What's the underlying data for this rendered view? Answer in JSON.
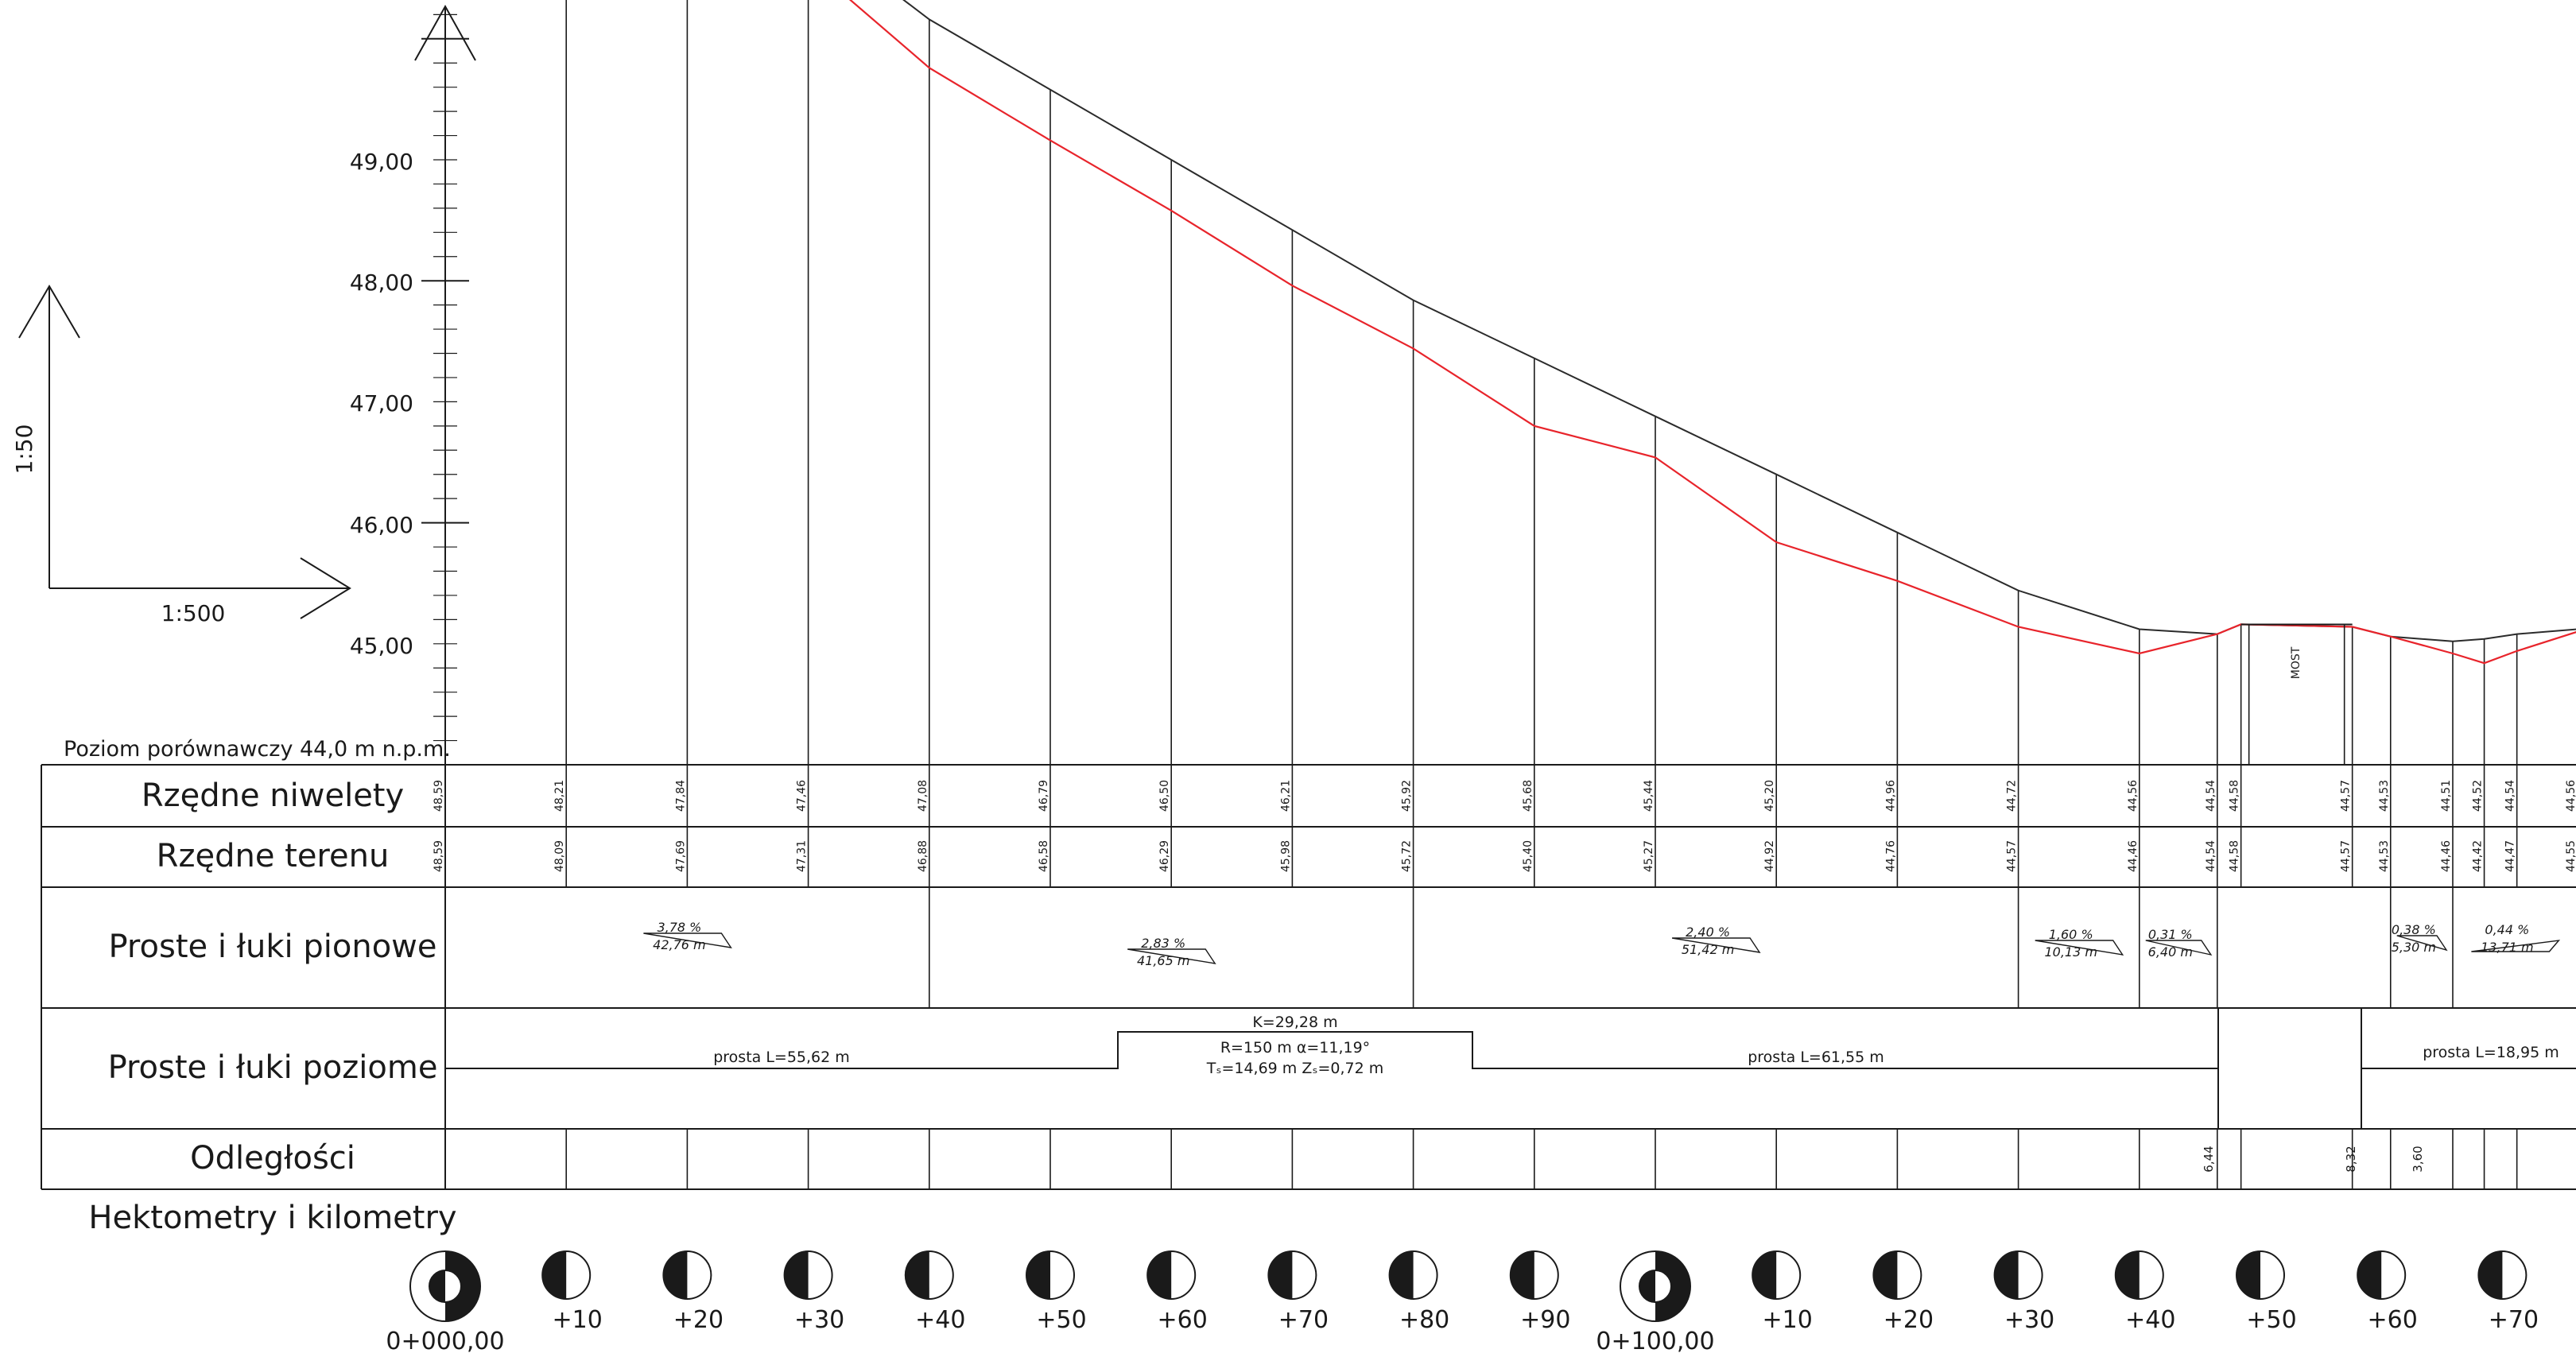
{
  "scales": {
    "vertical": "1:50",
    "horizontal": "1:500"
  },
  "datum_label": "Poziom porównawczy 44,0 m n.p.m.",
  "bridge_label": "MOST",
  "y_axis": {
    "ticks": [
      "49,00",
      "48,00",
      "47,00",
      "46,00",
      "45,00"
    ],
    "values": [
      49,
      48,
      47,
      46,
      45
    ]
  },
  "rows": {
    "niwelety": "Rzędne niwelety",
    "teren": "Rzędne terenu",
    "pionowe": "Proste i łuki pionowe",
    "poziome": "Proste i łuki poziome",
    "odleglosci": "Odległości",
    "hektometry": "Hektometry i kilometry"
  },
  "chart_data": {
    "type": "line",
    "ylim": [
      44,
      49
    ],
    "x": [
      0,
      10,
      20,
      30,
      40,
      50,
      60,
      70,
      80,
      90,
      100,
      110,
      120,
      130,
      140,
      146.44,
      149.6,
      158.5,
      160.76,
      165.9,
      168.5,
      171.2,
      176.2
    ],
    "x_plot": [
      0,
      10,
      20,
      30,
      40,
      50,
      60,
      70,
      80,
      90,
      100,
      110,
      120,
      130,
      140,
      146.44,
      148.4,
      157.6,
      160.76,
      165.9,
      168.5,
      171.2,
      176.2
    ],
    "niweleta_labels": [
      "48,59",
      "48,21",
      "47,84",
      "47,46",
      "47,08",
      "46,79",
      "46,50",
      "46,21",
      "45,92",
      "45,68",
      "45,44",
      "45,20",
      "44,96",
      "44,72",
      "44,56",
      "44,54",
      "44,58",
      "44,57",
      "44,53",
      "44,51",
      "44,52",
      "44,54",
      "44,56"
    ],
    "teren_labels": [
      "48,59",
      "48,09",
      "47,69",
      "47,31",
      "46,88",
      "46,58",
      "46,29",
      "45,98",
      "45,72",
      "45,40",
      "45,27",
      "44,92",
      "44,76",
      "44,57",
      "44,46",
      "44,54",
      "44,58",
      "44,57",
      "44,53",
      "44,46",
      "44,42",
      "44,47",
      "44,55"
    ],
    "series": [
      {
        "name": "Rzędne niwelety",
        "color": "#2b2b2b",
        "values": [
          48.59,
          48.21,
          47.84,
          47.46,
          47.08,
          46.79,
          46.5,
          46.21,
          45.92,
          45.68,
          45.44,
          45.2,
          44.96,
          44.72,
          44.56,
          44.54,
          44.58,
          44.57,
          44.53,
          44.51,
          44.52,
          44.54,
          44.56
        ]
      },
      {
        "name": "Rzędne terenu",
        "color": "#e8242b",
        "values": [
          48.59,
          48.09,
          47.69,
          47.31,
          46.88,
          46.58,
          46.29,
          45.98,
          45.72,
          45.4,
          45.27,
          44.92,
          44.76,
          44.57,
          44.46,
          44.54,
          44.58,
          44.57,
          44.53,
          44.46,
          44.42,
          44.47,
          44.55
        ]
      }
    ]
  },
  "grades": [
    {
      "from": 0,
      "to": 40,
      "percent": "3,78 %",
      "length": "42,76 m"
    },
    {
      "from": 40,
      "to": 80,
      "percent": "2,83 %",
      "length": "41,65 m"
    },
    {
      "from": 80,
      "to": 130,
      "percent": "2,40 %",
      "length": "51,42 m"
    },
    {
      "from": 130,
      "to": 140,
      "percent": "1,60 %",
      "length": "10,13 m"
    },
    {
      "from": 140,
      "to": 146.44,
      "percent": "0,31 %",
      "length": "6,40 m"
    },
    {
      "from": 160.76,
      "to": 165.9,
      "percent": "0,38 %",
      "length": "5,30 m"
    },
    {
      "from": 165.9,
      "to": 176.2,
      "percent": "0,44 %",
      "length": "13,71 m"
    }
  ],
  "horizontal": [
    {
      "kind": "straight",
      "label": "prosta L=55,62 m"
    },
    {
      "kind": "arc",
      "label_k": "K=29,28 m",
      "label_r": "R=150 m   α=11,19°",
      "label_t": "Tₛ=14,69 m   Zₛ=0,72 m"
    },
    {
      "kind": "straight",
      "label": "prosta L=61,55 m"
    },
    {
      "kind": "straight",
      "label": "prosta L=18,95 m"
    }
  ],
  "distances": [
    "6,44",
    "8,32",
    "3,60"
  ],
  "hectometers": [
    "0+000,00",
    "+10",
    "+20",
    "+30",
    "+40",
    "+50",
    "+60",
    "+70",
    "+80",
    "+90",
    "0+100,00",
    "+10",
    "+20",
    "+30",
    "+40",
    "+50",
    "+60",
    "+70"
  ]
}
